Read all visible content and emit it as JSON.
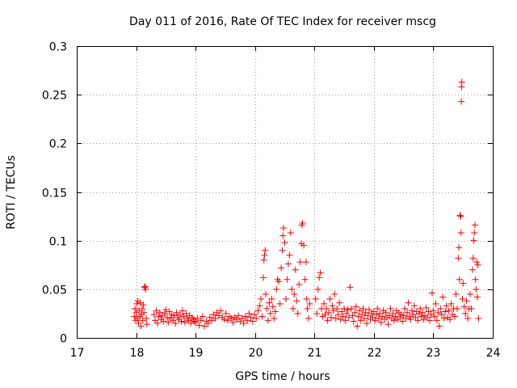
{
  "chart_data": {
    "type": "scatter",
    "title": "Day 011 of 2016, Rate Of TEC Index for receiver mscg",
    "xlabel": "GPS time / hours",
    "ylabel": "ROTI / TECUs",
    "xlim": [
      17,
      24
    ],
    "ylim": [
      0,
      0.3
    ],
    "xticks": [
      17,
      18,
      19,
      20,
      21,
      22,
      23,
      24
    ],
    "xtick_labels": [
      "17",
      "18",
      "19",
      "20",
      "21",
      "22",
      "23",
      "24"
    ],
    "yticks": [
      0,
      0.05,
      0.1,
      0.15,
      0.2,
      0.25,
      0.3
    ],
    "ytick_labels": [
      "0",
      "0.05",
      "0.1",
      "0.15",
      "0.2",
      "0.25",
      "0.3"
    ],
    "grid": true,
    "marker": "+",
    "color": "#ff0000",
    "series": [
      {
        "name": "ROTI",
        "points": [
          [
            17.97,
            0.022
          ],
          [
            17.98,
            0.03
          ],
          [
            17.99,
            0.018
          ],
          [
            18.0,
            0.026
          ],
          [
            18.01,
            0.035
          ],
          [
            18.02,
            0.02
          ],
          [
            18.03,
            0.038
          ],
          [
            18.04,
            0.015
          ],
          [
            18.05,
            0.028
          ],
          [
            18.06,
            0.022
          ],
          [
            18.07,
            0.036
          ],
          [
            18.08,
            0.012
          ],
          [
            18.09,
            0.024
          ],
          [
            18.1,
            0.03
          ],
          [
            18.11,
            0.018
          ],
          [
            18.12,
            0.034
          ],
          [
            18.13,
            0.026
          ],
          [
            18.14,
            0.052
          ],
          [
            18.15,
            0.053
          ],
          [
            18.16,
            0.05
          ],
          [
            18.17,
            0.02
          ],
          [
            18.18,
            0.014
          ],
          [
            18.3,
            0.024
          ],
          [
            18.32,
            0.018
          ],
          [
            18.34,
            0.028
          ],
          [
            18.36,
            0.015
          ],
          [
            18.38,
            0.022
          ],
          [
            18.4,
            0.026
          ],
          [
            18.42,
            0.019
          ],
          [
            18.44,
            0.023
          ],
          [
            18.46,
            0.017
          ],
          [
            18.48,
            0.025
          ],
          [
            18.5,
            0.029
          ],
          [
            18.52,
            0.021
          ],
          [
            18.54,
            0.016
          ],
          [
            18.56,
            0.027
          ],
          [
            18.58,
            0.02
          ],
          [
            18.6,
            0.024
          ],
          [
            18.62,
            0.018
          ],
          [
            18.64,
            0.023
          ],
          [
            18.66,
            0.015
          ],
          [
            18.68,
            0.026
          ],
          [
            18.7,
            0.021
          ],
          [
            18.72,
            0.019
          ],
          [
            18.74,
            0.024
          ],
          [
            18.76,
            0.017
          ],
          [
            18.78,
            0.028
          ],
          [
            18.8,
            0.022
          ],
          [
            18.82,
            0.016
          ],
          [
            18.84,
            0.025
          ],
          [
            18.86,
            0.02
          ],
          [
            18.88,
            0.018
          ],
          [
            18.9,
            0.023
          ],
          [
            18.92,
            0.015
          ],
          [
            18.94,
            0.021
          ],
          [
            18.96,
            0.019
          ],
          [
            18.98,
            0.017
          ],
          [
            19.0,
            0.016
          ],
          [
            19.03,
            0.02
          ],
          [
            19.06,
            0.013
          ],
          [
            19.09,
            0.018
          ],
          [
            19.12,
            0.022
          ],
          [
            19.15,
            0.012
          ],
          [
            19.18,
            0.017
          ],
          [
            19.21,
            0.015
          ],
          [
            19.24,
            0.021
          ],
          [
            19.27,
            0.018
          ],
          [
            19.3,
            0.024
          ],
          [
            19.33,
            0.02
          ],
          [
            19.36,
            0.026
          ],
          [
            19.39,
            0.023
          ],
          [
            19.42,
            0.028
          ],
          [
            19.45,
            0.021
          ],
          [
            19.48,
            0.019
          ],
          [
            19.51,
            0.025
          ],
          [
            19.54,
            0.018
          ],
          [
            19.57,
            0.022
          ],
          [
            19.6,
            0.02
          ],
          [
            19.63,
            0.016
          ],
          [
            19.66,
            0.021
          ],
          [
            19.69,
            0.019
          ],
          [
            19.72,
            0.023
          ],
          [
            19.75,
            0.017
          ],
          [
            19.78,
            0.02
          ],
          [
            19.81,
            0.015
          ],
          [
            19.84,
            0.022
          ],
          [
            19.87,
            0.018
          ],
          [
            19.9,
            0.025
          ],
          [
            19.93,
            0.021
          ],
          [
            19.96,
            0.017
          ],
          [
            19.99,
            0.024
          ],
          [
            20.02,
            0.02
          ],
          [
            20.05,
            0.028
          ],
          [
            20.08,
            0.033
          ],
          [
            20.1,
            0.04
          ],
          [
            20.12,
            0.022
          ],
          [
            20.14,
            0.062
          ],
          [
            20.15,
            0.08
          ],
          [
            20.16,
            0.085
          ],
          [
            20.17,
            0.09
          ],
          [
            20.18,
            0.045
          ],
          [
            20.2,
            0.03
          ],
          [
            20.22,
            0.018
          ],
          [
            20.24,
            0.036
          ],
          [
            20.26,
            0.025
          ],
          [
            20.28,
            0.04
          ],
          [
            20.3,
            0.032
          ],
          [
            20.32,
            0.02
          ],
          [
            20.34,
            0.027
          ],
          [
            20.36,
            0.05
          ],
          [
            20.38,
            0.06
          ],
          [
            20.4,
            0.058
          ],
          [
            20.42,
            0.035
          ],
          [
            20.44,
            0.072
          ],
          [
            20.46,
            0.09
          ],
          [
            20.47,
            0.105
          ],
          [
            20.48,
            0.113
          ],
          [
            20.5,
            0.098
          ],
          [
            20.52,
            0.04
          ],
          [
            20.54,
            0.06
          ],
          [
            20.56,
            0.076
          ],
          [
            20.58,
            0.085
          ],
          [
            20.6,
            0.108
          ],
          [
            20.62,
            0.05
          ],
          [
            20.64,
            0.03
          ],
          [
            20.66,
            0.045
          ],
          [
            20.68,
            0.07
          ],
          [
            20.7,
            0.038
          ],
          [
            20.72,
            0.025
          ],
          [
            20.74,
            0.055
          ],
          [
            20.76,
            0.078
          ],
          [
            20.78,
            0.097
          ],
          [
            20.79,
            0.116
          ],
          [
            20.8,
            0.118
          ],
          [
            20.82,
            0.095
          ],
          [
            20.84,
            0.06
          ],
          [
            20.86,
            0.078
          ],
          [
            20.87,
            0.04
          ],
          [
            20.88,
            0.03
          ],
          [
            20.9,
            0.02
          ],
          [
            20.92,
            0.035
          ],
          [
            21.02,
            0.04
          ],
          [
            21.04,
            0.025
          ],
          [
            21.06,
            0.05
          ],
          [
            21.08,
            0.062
          ],
          [
            21.1,
            0.067
          ],
          [
            21.12,
            0.03
          ],
          [
            21.14,
            0.022
          ],
          [
            21.16,
            0.035
          ],
          [
            21.18,
            0.024
          ],
          [
            21.2,
            0.03
          ],
          [
            21.22,
            0.018
          ],
          [
            21.24,
            0.026
          ],
          [
            21.26,
            0.04
          ],
          [
            21.28,
            0.021
          ],
          [
            21.3,
            0.033
          ],
          [
            21.32,
            0.028
          ],
          [
            21.34,
            0.045
          ],
          [
            21.36,
            0.02
          ],
          [
            21.38,
            0.03
          ],
          [
            21.4,
            0.024
          ],
          [
            21.42,
            0.036
          ],
          [
            21.44,
            0.019
          ],
          [
            21.46,
            0.027
          ],
          [
            21.48,
            0.022
          ],
          [
            21.5,
            0.03
          ],
          [
            21.52,
            0.018
          ],
          [
            21.54,
            0.025
          ],
          [
            21.56,
            0.029
          ],
          [
            21.58,
            0.021
          ],
          [
            21.6,
            0.052
          ],
          [
            21.62,
            0.03
          ],
          [
            21.64,
            0.023
          ],
          [
            21.66,
            0.017
          ],
          [
            21.68,
            0.026
          ],
          [
            21.7,
            0.032
          ],
          [
            21.72,
            0.012
          ],
          [
            21.74,
            0.022
          ],
          [
            21.76,
            0.028
          ],
          [
            21.78,
            0.018
          ],
          [
            21.8,
            0.024
          ],
          [
            21.82,
            0.03
          ],
          [
            21.84,
            0.02
          ],
          [
            21.86,
            0.026
          ],
          [
            21.88,
            0.015
          ],
          [
            21.9,
            0.023
          ],
          [
            21.92,
            0.029
          ],
          [
            21.94,
            0.019
          ],
          [
            21.96,
            0.025
          ],
          [
            21.98,
            0.021
          ],
          [
            22.0,
            0.027
          ],
          [
            22.02,
            0.018
          ],
          [
            22.04,
            0.024
          ],
          [
            22.06,
            0.03
          ],
          [
            22.08,
            0.02
          ],
          [
            22.1,
            0.025
          ],
          [
            22.12,
            0.016
          ],
          [
            22.14,
            0.022
          ],
          [
            22.16,
            0.028
          ],
          [
            22.18,
            0.019
          ],
          [
            22.2,
            0.026
          ],
          [
            22.22,
            0.021
          ],
          [
            22.24,
            0.014
          ],
          [
            22.26,
            0.023
          ],
          [
            22.28,
            0.03
          ],
          [
            22.3,
            0.02
          ],
          [
            22.32,
            0.025
          ],
          [
            22.34,
            0.018
          ],
          [
            22.36,
            0.022
          ],
          [
            22.38,
            0.028
          ],
          [
            22.4,
            0.019
          ],
          [
            22.42,
            0.026
          ],
          [
            22.44,
            0.021
          ],
          [
            22.46,
            0.024
          ],
          [
            22.48,
            0.017
          ],
          [
            22.5,
            0.023
          ],
          [
            22.52,
            0.03
          ],
          [
            22.54,
            0.02
          ],
          [
            22.56,
            0.026
          ],
          [
            22.58,
            0.036
          ],
          [
            22.6,
            0.022
          ],
          [
            22.62,
            0.019
          ],
          [
            22.64,
            0.028
          ],
          [
            22.66,
            0.024
          ],
          [
            22.68,
            0.033
          ],
          [
            22.7,
            0.021
          ],
          [
            22.72,
            0.027
          ],
          [
            22.74,
            0.018
          ],
          [
            22.76,
            0.025
          ],
          [
            22.78,
            0.03
          ],
          [
            22.8,
            0.022
          ],
          [
            22.82,
            0.026
          ],
          [
            22.84,
            0.019
          ],
          [
            22.86,
            0.023
          ],
          [
            22.88,
            0.031
          ],
          [
            22.9,
            0.021
          ],
          [
            22.92,
            0.027
          ],
          [
            22.94,
            0.018
          ],
          [
            22.96,
            0.024
          ],
          [
            22.98,
            0.046
          ],
          [
            23.0,
            0.028
          ],
          [
            23.02,
            0.022
          ],
          [
            23.04,
            0.035
          ],
          [
            23.06,
            0.018
          ],
          [
            23.08,
            0.026
          ],
          [
            23.1,
            0.012
          ],
          [
            23.12,
            0.03
          ],
          [
            23.14,
            0.024
          ],
          [
            23.16,
            0.042
          ],
          [
            23.18,
            0.02
          ],
          [
            23.2,
            0.027
          ],
          [
            23.22,
            0.033
          ],
          [
            23.24,
            0.021
          ],
          [
            23.26,
            0.028
          ],
          [
            23.28,
            0.019
          ],
          [
            23.3,
            0.035
          ],
          [
            23.32,
            0.024
          ],
          [
            23.34,
            0.03
          ],
          [
            23.36,
            0.022
          ],
          [
            23.38,
            0.045
          ],
          [
            23.4,
            0.03
          ],
          [
            23.42,
            0.082
          ],
          [
            23.43,
            0.093
          ],
          [
            23.44,
            0.06
          ],
          [
            23.45,
            0.126
          ],
          [
            23.46,
            0.125
          ],
          [
            23.465,
            0.108
          ],
          [
            23.47,
            0.243
          ],
          [
            23.475,
            0.258
          ],
          [
            23.48,
            0.263
          ],
          [
            23.49,
            0.04
          ],
          [
            23.5,
            0.056
          ],
          [
            23.52,
            0.032
          ],
          [
            23.54,
            0.025
          ],
          [
            23.56,
            0.038
          ],
          [
            23.58,
            0.02
          ],
          [
            23.6,
            0.03
          ],
          [
            23.62,
            0.045
          ],
          [
            23.64,
            0.03
          ],
          [
            23.66,
            0.07
          ],
          [
            23.67,
            0.082
          ],
          [
            23.68,
            0.1
          ],
          [
            23.69,
            0.108
          ],
          [
            23.7,
            0.116
          ],
          [
            23.71,
            0.06
          ],
          [
            23.72,
            0.05
          ],
          [
            23.73,
            0.078
          ],
          [
            23.74,
            0.042
          ],
          [
            23.75,
            0.075
          ],
          [
            23.76,
            0.02
          ]
        ]
      }
    ]
  }
}
